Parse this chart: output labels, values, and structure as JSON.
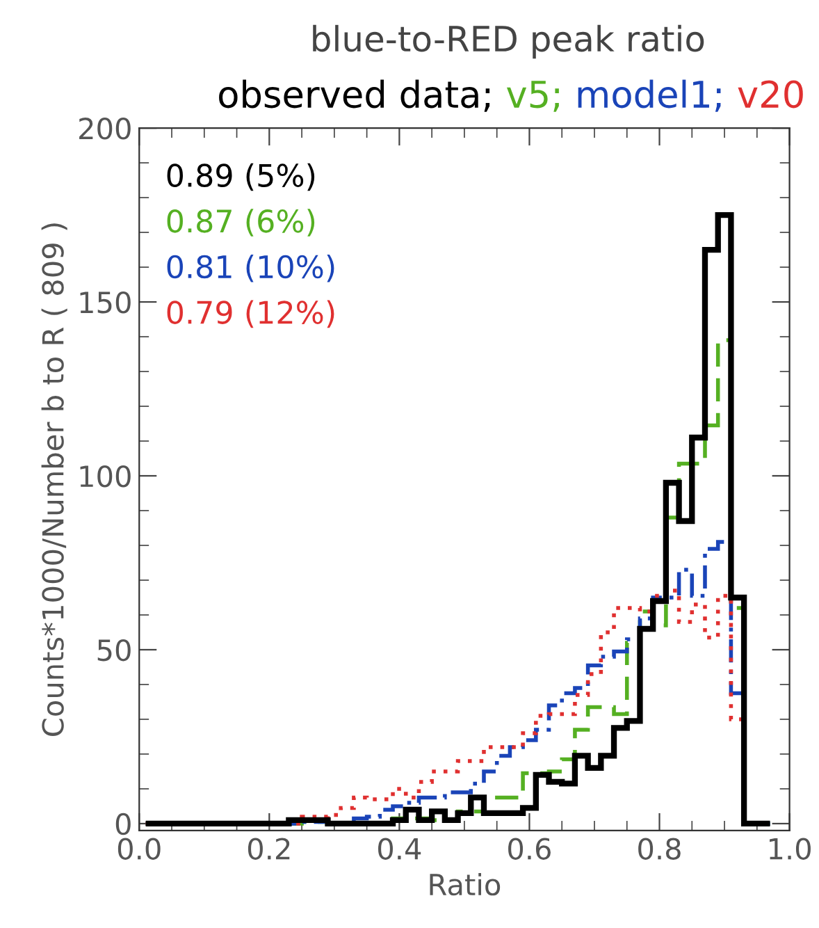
{
  "chart_data": {
    "type": "histogram",
    "title": "blue-to-RED peak ratio",
    "xlabel": "Ratio",
    "ylabel": "Counts*1000/Number b to R ( 809 )",
    "bins": [
      0.01,
      0.03,
      0.05,
      0.07,
      0.09,
      0.11,
      0.13,
      0.15,
      0.17,
      0.19,
      0.21,
      0.23,
      0.25,
      0.27,
      0.29,
      0.31,
      0.33,
      0.35,
      0.37,
      0.39,
      0.41,
      0.43,
      0.45,
      0.47,
      0.49,
      0.51,
      0.53,
      0.55,
      0.57,
      0.59,
      0.61,
      0.63,
      0.65,
      0.67,
      0.69,
      0.71,
      0.73,
      0.75,
      0.77,
      0.79,
      0.81,
      0.83,
      0.85,
      0.87,
      0.89,
      0.91,
      0.93,
      0.95,
      0.97
    ],
    "series": [
      {
        "name": "observed data;",
        "color": "#000000",
        "line_style": "solid",
        "values": [
          0,
          0,
          0,
          0,
          0,
          0,
          0,
          0,
          0,
          0,
          0,
          1,
          1,
          1,
          0,
          0,
          0,
          0,
          0,
          1,
          4,
          1,
          3.5,
          1,
          3,
          7.5,
          3,
          3,
          3,
          4.5,
          14,
          12,
          11.5,
          19.5,
          16,
          19.5,
          27.5,
          29.5,
          56,
          64,
          98,
          87,
          111,
          165,
          175,
          65,
          0,
          0
        ]
      },
      {
        "name": "v5;",
        "color": "#55b022",
        "line_style": "dashed",
        "values": [
          0,
          0,
          0,
          0,
          0,
          0,
          0,
          0,
          0,
          0,
          0,
          0,
          0.5,
          0.5,
          0,
          0,
          0,
          0,
          0,
          1.5,
          1.5,
          1.5,
          1,
          1,
          3.5,
          3.5,
          7.5,
          7.5,
          7.5,
          14.5,
          14.5,
          15,
          18.5,
          27,
          33.5,
          33.5,
          31.5,
          52,
          61,
          57,
          88,
          103.5,
          103.5,
          114.5,
          139,
          62,
          0,
          0
        ]
      },
      {
        "name": "model1;",
        "color": "#1a44b8",
        "line_style": "dashdot",
        "values": [
          0,
          0,
          0,
          0,
          0,
          0,
          0,
          0,
          0,
          0,
          0,
          0,
          0.5,
          0.5,
          0,
          0,
          1.5,
          2,
          4,
          5,
          6,
          7.5,
          7.5,
          9,
          9,
          11.5,
          15,
          19.5,
          22,
          24,
          27,
          34,
          37.5,
          39,
          45.5,
          48,
          49.5,
          53,
          59,
          65,
          65,
          73,
          65.5,
          79,
          81,
          37.5,
          0,
          0
        ]
      },
      {
        "name": "v20",
        "color": "#e03030",
        "line_style": "dotted",
        "values": [
          0,
          0,
          0,
          0,
          0,
          0,
          0,
          0,
          0,
          0,
          0,
          0,
          2,
          2,
          2.5,
          4.5,
          7.5,
          7,
          7,
          10,
          7.5,
          12,
          15,
          15,
          18,
          18,
          22,
          22,
          22,
          26,
          31,
          31.5,
          31.5,
          37,
          43,
          55,
          62,
          62,
          61,
          65.5,
          67,
          58,
          63,
          53.5,
          65.5,
          30,
          0,
          0
        ]
      }
    ],
    "annotations": [
      "0.89 (5%)",
      "0.87 (6%)",
      "0.81 (10%)",
      "0.79 (12%)"
    ],
    "legend": "top",
    "grid": false,
    "xlim": [
      0,
      1
    ],
    "xticks": [
      {
        "value": 0,
        "label": "0.0"
      },
      {
        "value": 0.2,
        "label": "0.2"
      },
      {
        "value": 0.4,
        "label": "0.4"
      },
      {
        "value": 0.6,
        "label": "0.6"
      },
      {
        "value": 0.8,
        "label": "0.8"
      },
      {
        "value": 1,
        "label": "1.0"
      }
    ],
    "ylim": [
      -2,
      200
    ],
    "yticks": [
      0,
      50,
      100,
      150,
      200
    ]
  }
}
